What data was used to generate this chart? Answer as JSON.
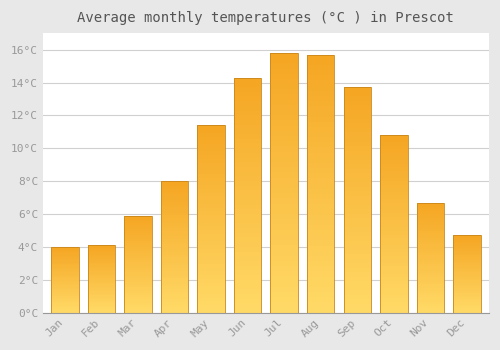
{
  "title": "Average monthly temperatures (°C ) in Prescot",
  "months": [
    "Jan",
    "Feb",
    "Mar",
    "Apr",
    "May",
    "Jun",
    "Jul",
    "Aug",
    "Sep",
    "Oct",
    "Nov",
    "Dec"
  ],
  "values": [
    4.0,
    4.1,
    5.9,
    8.0,
    11.4,
    14.3,
    15.8,
    15.7,
    13.7,
    10.8,
    6.7,
    4.7
  ],
  "bar_color_bottom": "#FFD966",
  "bar_color_top": "#F5A623",
  "bar_edge_color": "#C8861A",
  "background_color": "#E8E8E8",
  "plot_bg_color": "#FFFFFF",
  "grid_color": "#D0D0D0",
  "ytick_labels": [
    "0°C",
    "2°C",
    "4°C",
    "6°C",
    "8°C",
    "10°C",
    "12°C",
    "14°C",
    "16°C"
  ],
  "ytick_values": [
    0,
    2,
    4,
    6,
    8,
    10,
    12,
    14,
    16
  ],
  "ylim": [
    0,
    17
  ],
  "title_fontsize": 10,
  "tick_fontsize": 8,
  "tick_color": "#999999",
  "title_color": "#555555",
  "bar_width": 0.75,
  "n_gradient_steps": 50
}
